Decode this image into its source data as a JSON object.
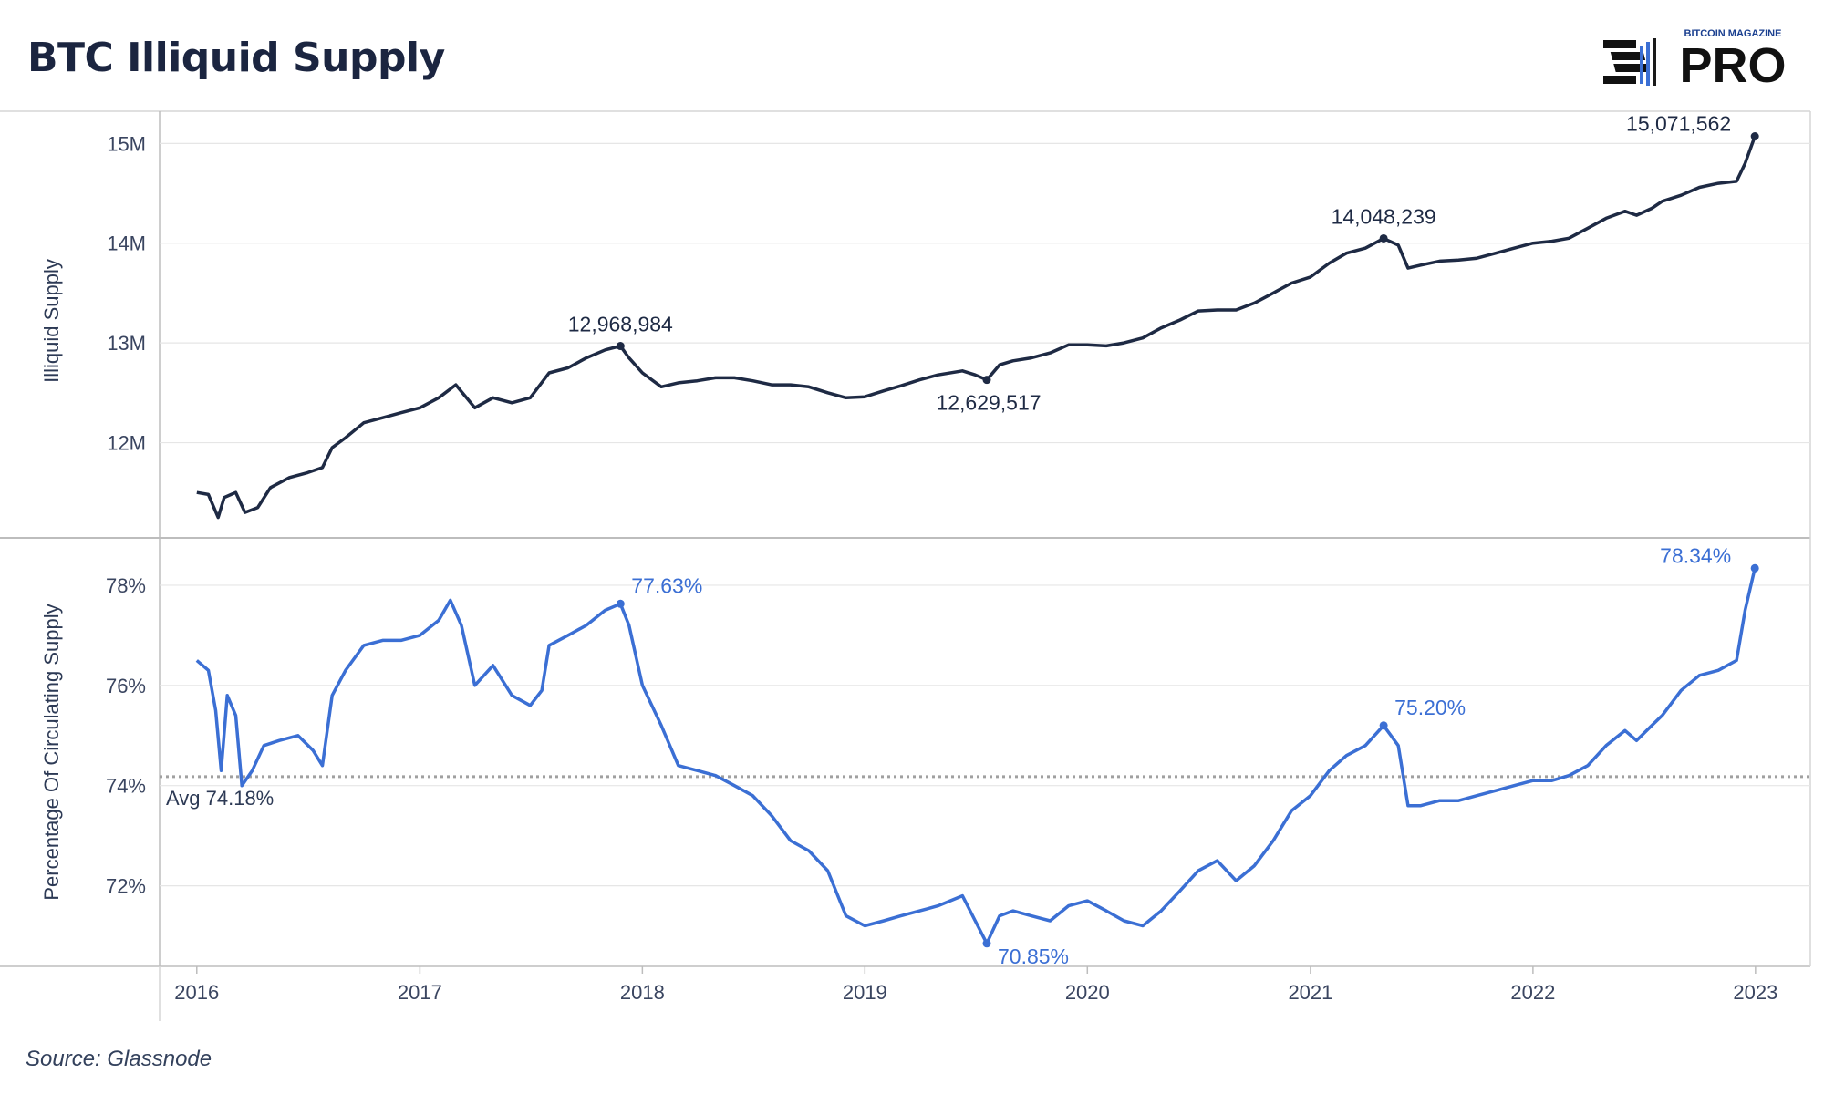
{
  "title": "BTC Illiquid Supply",
  "source": "Source: Glassnode",
  "logo": {
    "top_text": "BITCOIN MAGAZINE",
    "main_text": "PRO",
    "icon": "bars-logo-icon"
  },
  "colors": {
    "supply": "#1e2a44",
    "percent": "#3b6fd4",
    "grid": "#e6e6e6",
    "axis_text": "#3a4560",
    "avg_line": "#a0a0a0"
  },
  "chart_data": [
    {
      "type": "line",
      "ylabel": "Illiquid Supply",
      "ylim": [
        11100000,
        15250000
      ],
      "yticks": [
        {
          "value": 12000000,
          "label": "12M"
        },
        {
          "value": 13000000,
          "label": "13M"
        },
        {
          "value": 14000000,
          "label": "14M"
        },
        {
          "value": 15000000,
          "label": "15M"
        }
      ],
      "series": [
        {
          "points": [
            [
              "2016-01-01",
              11500000
            ],
            [
              "2016-01-20",
              11480000
            ],
            [
              "2016-02-05",
              11250000
            ],
            [
              "2016-02-15",
              11450000
            ],
            [
              "2016-03-05",
              11500000
            ],
            [
              "2016-03-20",
              11300000
            ],
            [
              "2016-04-10",
              11350000
            ],
            [
              "2016-05-01",
              11550000
            ],
            [
              "2016-06-01",
              11650000
            ],
            [
              "2016-07-01",
              11700000
            ],
            [
              "2016-07-25",
              11750000
            ],
            [
              "2016-08-10",
              11950000
            ],
            [
              "2016-09-01",
              12050000
            ],
            [
              "2016-10-01",
              12200000
            ],
            [
              "2016-11-01",
              12250000
            ],
            [
              "2016-12-01",
              12300000
            ],
            [
              "2017-01-01",
              12350000
            ],
            [
              "2017-02-01",
              12450000
            ],
            [
              "2017-03-01",
              12580000
            ],
            [
              "2017-04-01",
              12350000
            ],
            [
              "2017-05-01",
              12450000
            ],
            [
              "2017-06-01",
              12400000
            ],
            [
              "2017-07-01",
              12450000
            ],
            [
              "2017-08-01",
              12700000
            ],
            [
              "2017-09-01",
              12750000
            ],
            [
              "2017-10-01",
              12850000
            ],
            [
              "2017-11-01",
              12930000
            ],
            [
              "2017-11-26",
              12968984
            ],
            [
              "2017-12-10",
              12850000
            ],
            [
              "2018-01-01",
              12700000
            ],
            [
              "2018-02-01",
              12560000
            ],
            [
              "2018-03-01",
              12600000
            ],
            [
              "2018-04-01",
              12620000
            ],
            [
              "2018-05-01",
              12650000
            ],
            [
              "2018-06-01",
              12650000
            ],
            [
              "2018-07-01",
              12620000
            ],
            [
              "2018-08-01",
              12580000
            ],
            [
              "2018-09-01",
              12580000
            ],
            [
              "2018-10-01",
              12560000
            ],
            [
              "2018-11-01",
              12500000
            ],
            [
              "2018-12-01",
              12450000
            ],
            [
              "2019-01-01",
              12460000
            ],
            [
              "2019-02-01",
              12520000
            ],
            [
              "2019-03-01",
              12570000
            ],
            [
              "2019-04-01",
              12630000
            ],
            [
              "2019-05-01",
              12680000
            ],
            [
              "2019-06-10",
              12720000
            ],
            [
              "2019-07-01",
              12680000
            ],
            [
              "2019-07-20",
              12629517
            ],
            [
              "2019-08-10",
              12780000
            ],
            [
              "2019-09-01",
              12820000
            ],
            [
              "2019-10-01",
              12850000
            ],
            [
              "2019-11-01",
              12900000
            ],
            [
              "2019-12-01",
              12980000
            ],
            [
              "2020-01-01",
              12980000
            ],
            [
              "2020-02-01",
              12970000
            ],
            [
              "2020-03-01",
              13000000
            ],
            [
              "2020-04-01",
              13050000
            ],
            [
              "2020-05-01",
              13150000
            ],
            [
              "2020-06-01",
              13230000
            ],
            [
              "2020-07-01",
              13320000
            ],
            [
              "2020-08-01",
              13330000
            ],
            [
              "2020-09-01",
              13330000
            ],
            [
              "2020-10-01",
              13400000
            ],
            [
              "2020-11-01",
              13500000
            ],
            [
              "2020-12-01",
              13600000
            ],
            [
              "2021-01-01",
              13660000
            ],
            [
              "2021-02-01",
              13800000
            ],
            [
              "2021-03-01",
              13900000
            ],
            [
              "2021-04-01",
              13950000
            ],
            [
              "2021-05-01",
              14048239
            ],
            [
              "2021-05-25",
              13980000
            ],
            [
              "2021-06-10",
              13750000
            ],
            [
              "2021-07-01",
              13780000
            ],
            [
              "2021-08-01",
              13820000
            ],
            [
              "2021-09-01",
              13830000
            ],
            [
              "2021-10-01",
              13850000
            ],
            [
              "2021-11-01",
              13900000
            ],
            [
              "2021-12-01",
              13950000
            ],
            [
              "2022-01-01",
              14000000
            ],
            [
              "2022-02-01",
              14020000
            ],
            [
              "2022-03-01",
              14050000
            ],
            [
              "2022-04-01",
              14150000
            ],
            [
              "2022-05-01",
              14250000
            ],
            [
              "2022-06-01",
              14320000
            ],
            [
              "2022-06-20",
              14280000
            ],
            [
              "2022-07-15",
              14350000
            ],
            [
              "2022-08-01",
              14420000
            ],
            [
              "2022-09-01",
              14480000
            ],
            [
              "2022-10-01",
              14560000
            ],
            [
              "2022-11-01",
              14600000
            ],
            [
              "2022-12-01",
              14620000
            ],
            [
              "2022-12-15",
              14800000
            ],
            [
              "2022-12-31",
              15071562
            ]
          ]
        }
      ],
      "annotations": [
        {
          "x": "2017-11-26",
          "y": 12968984,
          "label": "12,968,984",
          "pos": "above"
        },
        {
          "x": "2019-07-20",
          "y": 12629517,
          "label": "12,629,517",
          "pos": "below"
        },
        {
          "x": "2021-05-01",
          "y": 14048239,
          "label": "14,048,239",
          "pos": "above"
        },
        {
          "x": "2022-12-31",
          "y": 15071562,
          "label": "15,071,562",
          "pos": "left"
        }
      ]
    },
    {
      "type": "line",
      "ylabel": "Percentage Of Circulating Supply",
      "ylim": [
        70.5,
        78.8
      ],
      "yticks": [
        {
          "value": 72,
          "label": "72%"
        },
        {
          "value": 74,
          "label": "74%"
        },
        {
          "value": 76,
          "label": "76%"
        },
        {
          "value": 78,
          "label": "78%"
        }
      ],
      "average": {
        "value": 74.18,
        "label": "Avg 74.18%"
      },
      "series": [
        {
          "points": [
            [
              "2016-01-01",
              76.5
            ],
            [
              "2016-01-20",
              76.3
            ],
            [
              "2016-02-01",
              75.5
            ],
            [
              "2016-02-10",
              74.3
            ],
            [
              "2016-02-20",
              75.8
            ],
            [
              "2016-03-05",
              75.4
            ],
            [
              "2016-03-15",
              74.0
            ],
            [
              "2016-04-01",
              74.3
            ],
            [
              "2016-04-20",
              74.8
            ],
            [
              "2016-05-15",
              74.9
            ],
            [
              "2016-06-15",
              75.0
            ],
            [
              "2016-07-10",
              74.7
            ],
            [
              "2016-07-25",
              74.4
            ],
            [
              "2016-08-10",
              75.8
            ],
            [
              "2016-09-01",
              76.3
            ],
            [
              "2016-10-01",
              76.8
            ],
            [
              "2016-11-01",
              76.9
            ],
            [
              "2016-12-01",
              76.9
            ],
            [
              "2017-01-01",
              77.0
            ],
            [
              "2017-02-01",
              77.3
            ],
            [
              "2017-02-20",
              77.7
            ],
            [
              "2017-03-10",
              77.2
            ],
            [
              "2017-04-01",
              76.0
            ],
            [
              "2017-05-01",
              76.4
            ],
            [
              "2017-06-01",
              75.8
            ],
            [
              "2017-07-01",
              75.6
            ],
            [
              "2017-07-20",
              75.9
            ],
            [
              "2017-08-01",
              76.8
            ],
            [
              "2017-09-01",
              77.0
            ],
            [
              "2017-10-01",
              77.2
            ],
            [
              "2017-11-01",
              77.5
            ],
            [
              "2017-11-26",
              77.63
            ],
            [
              "2017-12-10",
              77.2
            ],
            [
              "2018-01-01",
              76.0
            ],
            [
              "2018-02-01",
              75.2
            ],
            [
              "2018-03-01",
              74.4
            ],
            [
              "2018-04-01",
              74.3
            ],
            [
              "2018-05-01",
              74.2
            ],
            [
              "2018-06-01",
              74.0
            ],
            [
              "2018-07-01",
              73.8
            ],
            [
              "2018-08-01",
              73.4
            ],
            [
              "2018-09-01",
              72.9
            ],
            [
              "2018-10-01",
              72.7
            ],
            [
              "2018-11-01",
              72.3
            ],
            [
              "2018-12-01",
              71.4
            ],
            [
              "2019-01-01",
              71.2
            ],
            [
              "2019-02-01",
              71.3
            ],
            [
              "2019-03-01",
              71.4
            ],
            [
              "2019-04-01",
              71.5
            ],
            [
              "2019-05-01",
              71.6
            ],
            [
              "2019-06-10",
              71.8
            ],
            [
              "2019-07-01",
              71.3
            ],
            [
              "2019-07-20",
              70.85
            ],
            [
              "2019-08-10",
              71.4
            ],
            [
              "2019-09-01",
              71.5
            ],
            [
              "2019-10-01",
              71.4
            ],
            [
              "2019-11-01",
              71.3
            ],
            [
              "2019-12-01",
              71.6
            ],
            [
              "2020-01-01",
              71.7
            ],
            [
              "2020-02-01",
              71.5
            ],
            [
              "2020-03-01",
              71.3
            ],
            [
              "2020-04-01",
              71.2
            ],
            [
              "2020-05-01",
              71.5
            ],
            [
              "2020-06-01",
              71.9
            ],
            [
              "2020-07-01",
              72.3
            ],
            [
              "2020-08-01",
              72.5
            ],
            [
              "2020-09-01",
              72.1
            ],
            [
              "2020-10-01",
              72.4
            ],
            [
              "2020-11-01",
              72.9
            ],
            [
              "2020-12-01",
              73.5
            ],
            [
              "2021-01-01",
              73.8
            ],
            [
              "2021-02-01",
              74.3
            ],
            [
              "2021-03-01",
              74.6
            ],
            [
              "2021-04-01",
              74.8
            ],
            [
              "2021-05-01",
              75.2
            ],
            [
              "2021-05-25",
              74.8
            ],
            [
              "2021-06-10",
              73.6
            ],
            [
              "2021-07-01",
              73.6
            ],
            [
              "2021-08-01",
              73.7
            ],
            [
              "2021-09-01",
              73.7
            ],
            [
              "2021-10-01",
              73.8
            ],
            [
              "2021-11-01",
              73.9
            ],
            [
              "2021-12-01",
              74.0
            ],
            [
              "2022-01-01",
              74.1
            ],
            [
              "2022-02-01",
              74.1
            ],
            [
              "2022-03-01",
              74.2
            ],
            [
              "2022-04-01",
              74.4
            ],
            [
              "2022-05-01",
              74.8
            ],
            [
              "2022-06-01",
              75.1
            ],
            [
              "2022-06-20",
              74.9
            ],
            [
              "2022-07-15",
              75.2
            ],
            [
              "2022-08-01",
              75.4
            ],
            [
              "2022-09-01",
              75.9
            ],
            [
              "2022-10-01",
              76.2
            ],
            [
              "2022-11-01",
              76.3
            ],
            [
              "2022-12-01",
              76.5
            ],
            [
              "2022-12-15",
              77.5
            ],
            [
              "2022-12-31",
              78.34
            ]
          ]
        }
      ],
      "annotations": [
        {
          "x": "2017-11-26",
          "y": 77.63,
          "label": "77.63%",
          "pos": "right"
        },
        {
          "x": "2019-07-20",
          "y": 70.85,
          "label": "70.85%",
          "pos": "right"
        },
        {
          "x": "2021-05-01",
          "y": 75.2,
          "label": "75.20%",
          "pos": "right"
        },
        {
          "x": "2022-12-31",
          "y": 78.34,
          "label": "78.34%",
          "pos": "left"
        }
      ]
    }
  ],
  "x_axis": {
    "type": "date",
    "range": [
      "2015-11-01",
      "2023-04-01"
    ],
    "ticks": [
      {
        "value": "2016-01-01",
        "label": "2016"
      },
      {
        "value": "2017-01-01",
        "label": "2017"
      },
      {
        "value": "2018-01-01",
        "label": "2018"
      },
      {
        "value": "2019-01-01",
        "label": "2019"
      },
      {
        "value": "2020-01-01",
        "label": "2020"
      },
      {
        "value": "2021-01-01",
        "label": "2021"
      },
      {
        "value": "2022-01-01",
        "label": "2022"
      },
      {
        "value": "2023-01-01",
        "label": "2023"
      }
    ]
  }
}
